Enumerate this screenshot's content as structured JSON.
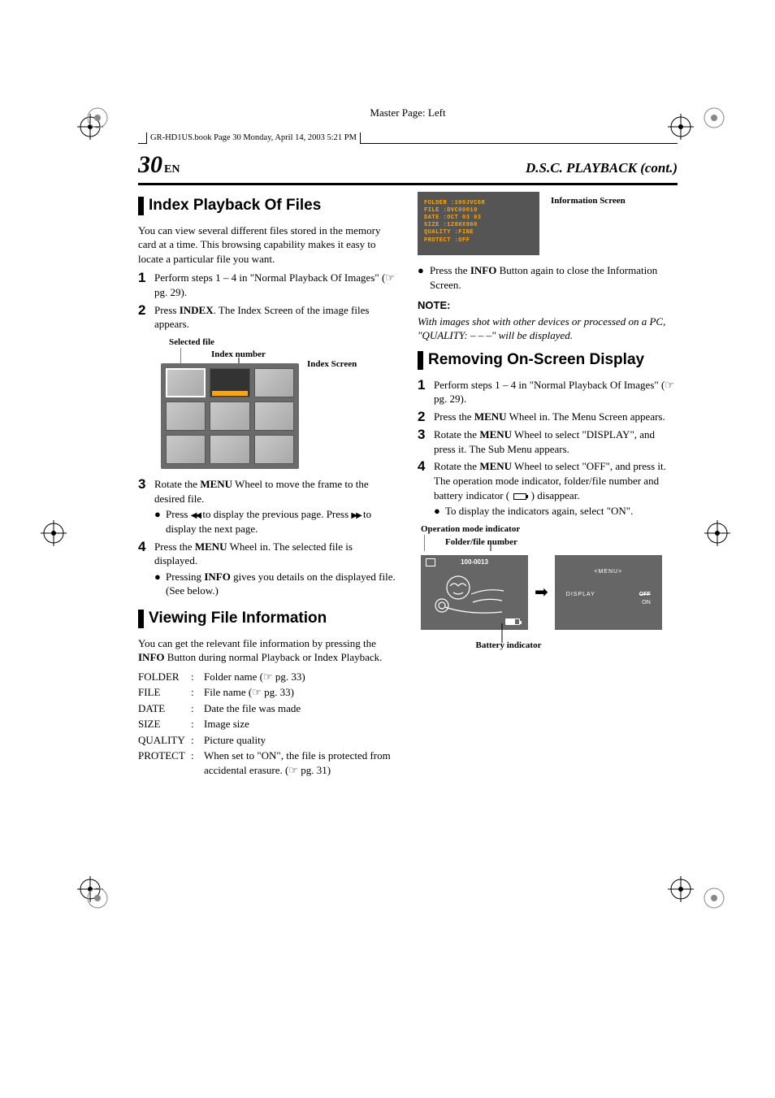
{
  "master_page": "Master Page: Left",
  "book_tag": "GR-HD1US.book  Page 30  Monday, April 14, 2003  5:21 PM",
  "page_number": "30",
  "page_lang": "EN",
  "section_title": "D.S.C. PLAYBACK (cont.)",
  "left": {
    "h_index": "Index Playback Of Files",
    "intro": "You can view several different files stored in the memory card at a time. This browsing capability makes it easy to locate a particular file you want.",
    "step1": "Perform steps 1 – 4 in \"Normal Playback Of Images\" (☞ pg. 29).",
    "step2_pre": "Press ",
    "step2_bold": "INDEX",
    "step2_post": ". The Index Screen of the image files appears.",
    "fig_selected": "Selected file",
    "fig_indexnum": "Index number",
    "fig_indexscreen": "Index Screen",
    "step3_pre": "Rotate the ",
    "step3_bold": "MENU",
    "step3_post": " Wheel to move the frame to the desired file.",
    "step3_sub": " to display the previous page. Press ",
    "step3_sub_pre": "Press ",
    "step3_sub_end": " to display the next page.",
    "step4_pre": "Press the ",
    "step4_bold": "MENU",
    "step4_post": " Wheel in. The selected file is displayed.",
    "step4_sub_pre": "Pressing ",
    "step4_sub_bold": "INFO",
    "step4_sub_post": " gives you details on the displayed file. (See below.)",
    "h_viewinfo": "Viewing File Information",
    "viewinfo_intro_pre": "You can get the relevant file information by pressing the ",
    "viewinfo_intro_bold": "INFO",
    "viewinfo_intro_post": " Button during normal Playback or Index Playback.",
    "table": {
      "rows": [
        {
          "k": "FOLDER",
          "v": "Folder name (☞ pg. 33)"
        },
        {
          "k": "FILE",
          "v": "File name (☞ pg. 33)"
        },
        {
          "k": "DATE",
          "v": "Date the file was made"
        },
        {
          "k": "SIZE",
          "v": "Image size"
        },
        {
          "k": "QUALITY",
          "v": "Picture quality"
        },
        {
          "k": "PROTECT",
          "v": "When set to \"ON\", the file is protected from accidental erasure. (☞ pg. 31)"
        }
      ]
    }
  },
  "right": {
    "info_screen_label": "Information Screen",
    "info_screen": {
      "lines": [
        "FOLDER  :100JVCGR",
        "FILE    :DVC00010",
        "DATE    :OCT 03 03",
        "SIZE    :1280X960",
        "QUALITY :FINE",
        "PROTECT :OFF"
      ],
      "bg": "#555555",
      "fg": "#ffa500"
    },
    "close_pre": "Press the ",
    "close_bold": "INFO",
    "close_post": " Button again to close the Information Screen.",
    "note_head": "NOTE:",
    "note_body": "With images shot with other devices or processed on a PC, \"QUALITY: – – –\" will be displayed.",
    "h_remove": "Removing On-Screen Display",
    "r_step1": "Perform steps 1 – 4 in \"Normal Playback Of Images\" (☞ pg. 29).",
    "r_step2_pre": "Press the ",
    "r_step2_bold": "MENU",
    "r_step2_post": " Wheel in. The Menu Screen appears.",
    "r_step3_pre": "Rotate the ",
    "r_step3_bold": "MENU",
    "r_step3_post": " Wheel to select \"DISPLAY\", and press it. The Sub Menu appears.",
    "r_step4_pre": "Rotate the ",
    "r_step4_bold": "MENU",
    "r_step4_post": " Wheel to select \"OFF\", and press it. The operation mode indicator, folder/file number and battery indicator ( ",
    "r_step4_end": " ) disappear.",
    "r_step4_sub": "To display the indicators again, select \"ON\".",
    "fig_opmode": "Operation mode indicator",
    "fig_ffn": "Folder/file number",
    "panel_ffn": "100-0013",
    "panel_menu": "<MENU>",
    "panel_display": "DISPLAY",
    "panel_off": "OFF",
    "panel_on": "ON",
    "fig_batt": "Battery indicator"
  }
}
